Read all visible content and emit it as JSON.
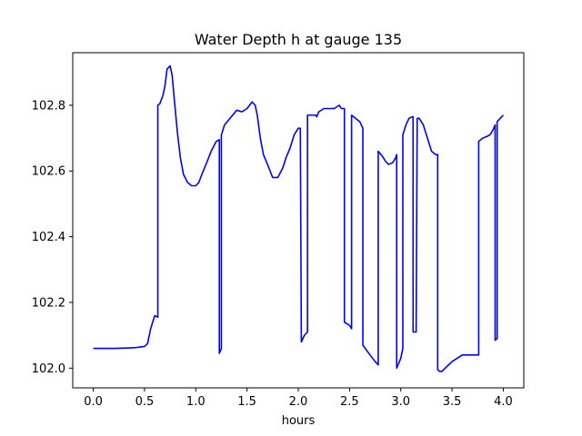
{
  "chart_data": {
    "type": "line",
    "title": "Water Depth h at gauge 135",
    "xlabel": "hours",
    "ylabel": "",
    "xlim": [
      -0.2,
      4.2
    ],
    "ylim": [
      101.94,
      102.96
    ],
    "xticks": [
      0.0,
      0.5,
      1.0,
      1.5,
      2.0,
      2.5,
      3.0,
      3.5,
      4.0
    ],
    "xtick_labels": [
      "0.0",
      "0.5",
      "1.0",
      "1.5",
      "2.0",
      "2.5",
      "3.0",
      "3.5",
      "4.0"
    ],
    "yticks": [
      102.0,
      102.2,
      102.4,
      102.6,
      102.8
    ],
    "ytick_labels": [
      "102.0",
      "102.2",
      "102.4",
      "102.6",
      "102.8"
    ],
    "grid": false,
    "series": [
      {
        "color": "#0000ff",
        "x": [
          0.0,
          0.2,
          0.4,
          0.5,
          0.53,
          0.56,
          0.6,
          0.63,
          0.63,
          0.65,
          0.68,
          0.7,
          0.72,
          0.75,
          0.77,
          0.79,
          0.82,
          0.85,
          0.88,
          0.92,
          0.96,
          1.0,
          1.03,
          1.06,
          1.1,
          1.15,
          1.2,
          1.23,
          1.23,
          1.25,
          1.25,
          1.28,
          1.32,
          1.36,
          1.4,
          1.45,
          1.5,
          1.55,
          1.58,
          1.6,
          1.63,
          1.66,
          1.7,
          1.75,
          1.8,
          1.85,
          1.88,
          1.92,
          1.96,
          2.0,
          2.02,
          2.03,
          2.03,
          2.06,
          2.09,
          2.09,
          2.12,
          2.15,
          2.17,
          2.18,
          2.2,
          2.25,
          2.3,
          2.35,
          2.4,
          2.42,
          2.45,
          2.45,
          2.5,
          2.52,
          2.52,
          2.56,
          2.6,
          2.63,
          2.63,
          2.7,
          2.75,
          2.78,
          2.78,
          2.82,
          2.85,
          2.88,
          2.92,
          2.95,
          2.96,
          2.96,
          3.0,
          3.02,
          3.02,
          3.05,
          3.08,
          3.11,
          3.12,
          3.12,
          3.15,
          3.15,
          3.16,
          3.18,
          3.22,
          3.25,
          3.28,
          3.3,
          3.34,
          3.36,
          3.36,
          3.38,
          3.4,
          3.45,
          3.5,
          3.55,
          3.6,
          3.65,
          3.7,
          3.76,
          3.76,
          3.8,
          3.84,
          3.87,
          3.9,
          3.92,
          3.92,
          3.94,
          3.94,
          4.0
        ],
        "y": [
          102.06,
          102.06,
          102.062,
          102.066,
          102.075,
          102.12,
          102.16,
          102.155,
          102.8,
          102.805,
          102.83,
          102.86,
          102.91,
          102.92,
          102.89,
          102.82,
          102.72,
          102.64,
          102.59,
          102.565,
          102.555,
          102.555,
          102.565,
          102.59,
          102.62,
          102.66,
          102.69,
          102.695,
          102.045,
          102.06,
          102.71,
          102.74,
          102.755,
          102.77,
          102.785,
          102.78,
          102.79,
          102.81,
          102.8,
          102.77,
          102.7,
          102.65,
          102.62,
          102.58,
          102.58,
          102.61,
          102.64,
          102.67,
          102.71,
          102.73,
          102.73,
          102.08,
          102.08,
          102.1,
          102.11,
          102.77,
          102.77,
          102.77,
          102.77,
          102.765,
          102.78,
          102.79,
          102.79,
          102.79,
          102.8,
          102.79,
          102.79,
          102.14,
          102.13,
          102.12,
          102.77,
          102.76,
          102.75,
          102.73,
          102.07,
          102.04,
          102.02,
          102.01,
          102.66,
          102.645,
          102.63,
          102.62,
          102.625,
          102.64,
          102.65,
          102.0,
          102.03,
          102.06,
          102.71,
          102.74,
          102.76,
          102.765,
          102.765,
          102.11,
          102.11,
          102.11,
          102.76,
          102.76,
          102.74,
          102.71,
          102.68,
          102.66,
          102.65,
          102.65,
          101.995,
          101.99,
          101.99,
          102.005,
          102.02,
          102.03,
          102.04,
          102.04,
          102.04,
          102.04,
          102.69,
          102.7,
          102.705,
          102.71,
          102.725,
          102.74,
          102.085,
          102.09,
          102.75,
          102.77
        ]
      }
    ]
  }
}
